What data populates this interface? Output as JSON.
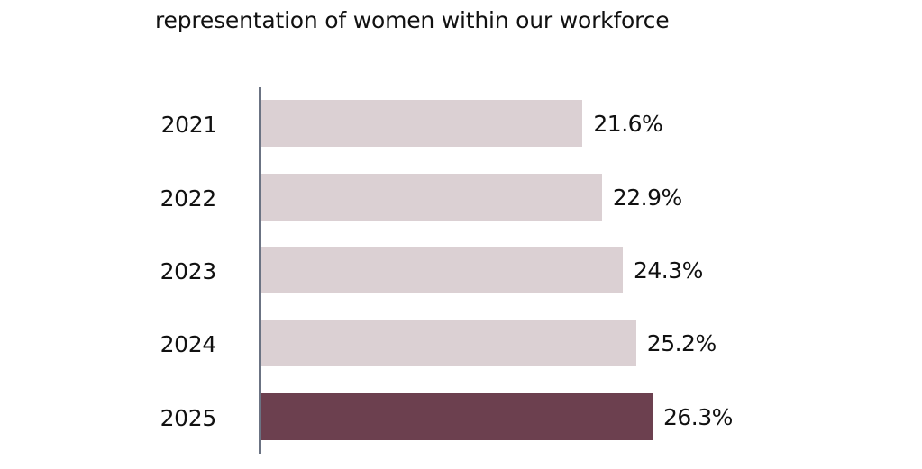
{
  "chart_data": {
    "type": "bar",
    "orientation": "horizontal",
    "title": "representation of women within our workforce",
    "xlabel": "",
    "ylabel": "",
    "categories": [
      "2021",
      "2022",
      "2023",
      "2024",
      "2025"
    ],
    "values": [
      21.6,
      22.9,
      24.3,
      25.2,
      26.3
    ],
    "value_labels": [
      "21.6%",
      "22.9%",
      "24.3%",
      "25.2%",
      "26.3%"
    ],
    "unit": "%",
    "highlighted_category": "2025",
    "colors": {
      "default_bar": "#dbd0d3",
      "highlight_bar": "#6c404f",
      "axis": "#6b7383"
    },
    "grid": false,
    "legend": null
  }
}
